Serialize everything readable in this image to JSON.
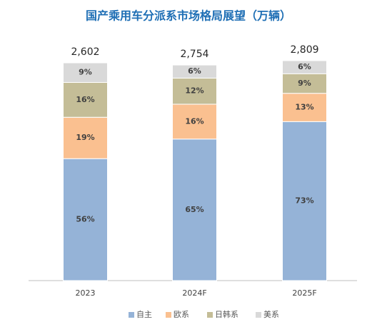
{
  "chart_data": {
    "type": "stacked-bar-100",
    "title": "国产乘用车分派系市场格局展望（万辆）",
    "categories": [
      "2023",
      "2024F",
      "2025F"
    ],
    "totals": [
      2602,
      2754,
      2809
    ],
    "totals_labels": [
      "2,602",
      "2,754",
      "2,809"
    ],
    "ylim": [
      0,
      100
    ],
    "series": [
      {
        "name": "自主",
        "color": "#95b3d7",
        "values": [
          56,
          65,
          73
        ],
        "value_labels": [
          "56%",
          "65%",
          "73%"
        ]
      },
      {
        "name": "欧系",
        "color": "#fac090",
        "values": [
          19,
          16,
          13
        ],
        "value_labels": [
          "19%",
          "16%",
          "13%"
        ]
      },
      {
        "name": "日韩系",
        "color": "#c4bd97",
        "values": [
          16,
          12,
          9
        ],
        "value_labels": [
          "16%",
          "12%",
          "9%"
        ]
      },
      {
        "name": "美系",
        "color": "#d9d9d9",
        "values": [
          9,
          6,
          6
        ],
        "value_labels": [
          "9%",
          "6%",
          "6%"
        ]
      }
    ],
    "legend": "bottom"
  }
}
